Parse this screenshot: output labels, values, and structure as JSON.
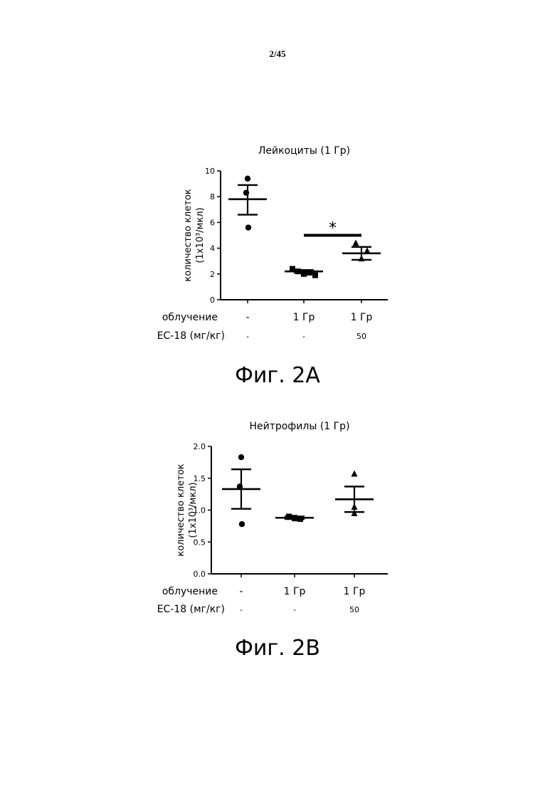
{
  "page_number": "2/45",
  "figures": {
    "a": {
      "caption": "Фиг. 2A"
    },
    "b": {
      "caption": "Фиг. 2B"
    }
  },
  "chart_data": [
    {
      "type": "scatter",
      "title": "Лейкоциты (1 Гр)",
      "ylabel": "количество клеток (1x10³/мкл)",
      "ylim": [
        0,
        10
      ],
      "yticks": [
        "0",
        "2",
        "4",
        "6",
        "8",
        "10"
      ],
      "ytick_values": [
        0,
        2,
        4,
        6,
        8,
        10
      ],
      "row_labels": [
        "облучение",
        "EC-18 (мг/кг)"
      ],
      "groups": [
        {
          "irradiation": "-",
          "dose": "-",
          "marker": "circle",
          "points": [
            9.4,
            8.3,
            5.6
          ],
          "mean": 7.8,
          "sem_low": 6.6,
          "sem_high": 8.9
        },
        {
          "irradiation": "1 Гр",
          "dose": "-",
          "marker": "square",
          "points": [
            2.4,
            2.2,
            2.0,
            2.1,
            1.9
          ],
          "mean": 2.2,
          "sem_low": 2.1,
          "sem_high": 2.3
        },
        {
          "irradiation": "1 Гр",
          "dose": "50",
          "marker": "triangle",
          "points": [
            4.4,
            3.8,
            3.2
          ],
          "mean": 3.6,
          "sem_low": 3.1,
          "sem_high": 4.1
        }
      ],
      "significance": {
        "between": [
          1,
          2
        ],
        "value": 5.0,
        "label": "*"
      }
    },
    {
      "type": "scatter",
      "title": "Нейтрофилы (1 Гр)",
      "ylabel": "количество клеток (1x10³/мкл)",
      "ylim": [
        0,
        2
      ],
      "yticks": [
        "0.0",
        "0.5",
        "1.0",
        "1.5",
        "2.0"
      ],
      "ytick_values": [
        0,
        0.5,
        1.0,
        1.5,
        2.0
      ],
      "row_labels": [
        "облучение",
        "EC-18 (мг/кг)"
      ],
      "groups": [
        {
          "irradiation": "-",
          "dose": "-",
          "marker": "circle",
          "points": [
            1.83,
            1.37,
            0.78
          ],
          "mean": 1.33,
          "sem_low": 1.02,
          "sem_high": 1.64
        },
        {
          "irradiation": "1 Гр",
          "dose": "-",
          "marker": "square",
          "points": [
            0.9,
            0.88,
            0.86,
            0.87
          ],
          "mean": 0.88,
          "sem_low": 0.86,
          "sem_high": 0.9
        },
        {
          "irradiation": "1 Гр",
          "dose": "50",
          "marker": "triangle",
          "points": [
            1.57,
            1.05,
            0.95
          ],
          "mean": 1.17,
          "sem_low": 0.97,
          "sem_high": 1.37
        }
      ],
      "significance": null
    }
  ]
}
